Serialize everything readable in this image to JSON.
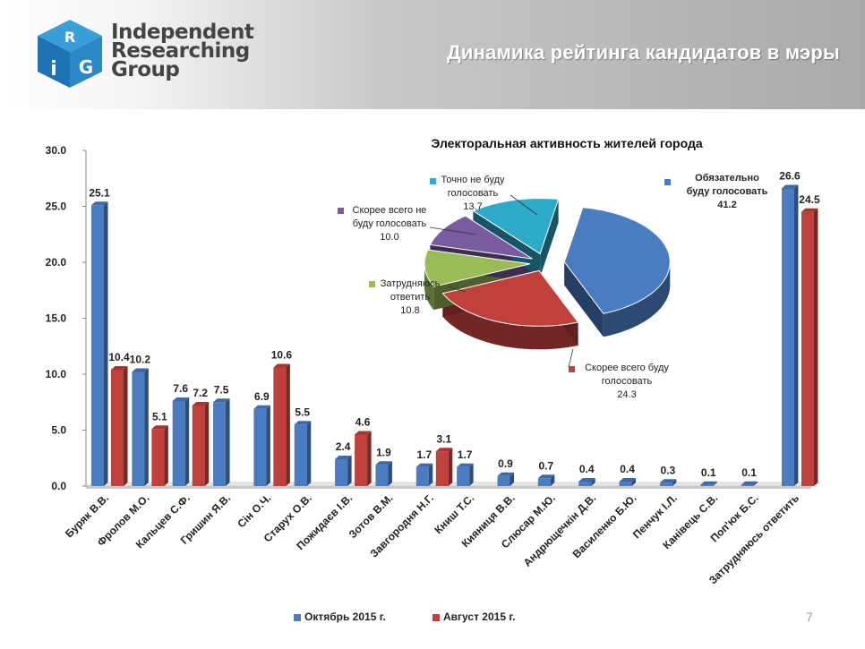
{
  "header": {
    "title": "Динамика рейтинга кандидатов в мэры",
    "logo_lines": [
      "Independent",
      "Researching",
      "Group"
    ],
    "logo_letters": [
      "R",
      "i",
      "G"
    ]
  },
  "page_number": "7",
  "colors": {
    "october": "#4a7cc2",
    "august": "#c0403c"
  },
  "chart_data": [
    {
      "type": "bar",
      "title": "",
      "xlabel": "",
      "ylabel": "",
      "ylim": [
        0,
        30
      ],
      "yticks": [
        "0.0",
        "5.0",
        "10.0",
        "15.0",
        "20.0",
        "25.0",
        "30.0"
      ],
      "categories": [
        "Буряк В.В.",
        "Фролов М.О.",
        "Кальцев С.Ф.",
        "Гришин Я.В.",
        "Сін О.Ч.",
        "Старух О.В.",
        "Пожидаєв І.В.",
        "Зотов В.М.",
        "Завгородня Н.Г.",
        "Книш Т.С.",
        "Кияниця В.В.",
        "Слюсар М.Ю.",
        "Андрющечкін Д.В.",
        "Василенко Б.Ю.",
        "Пенчук І.Л.",
        "Канівець С.В.",
        "Поп'юк Б.С.",
        "Затрудняюсь ответить"
      ],
      "series": [
        {
          "name": "Октябрь 2015 г.",
          "values": [
            25.1,
            10.2,
            7.6,
            7.5,
            6.9,
            5.5,
            2.4,
            1.9,
            1.7,
            1.7,
            0.9,
            0.7,
            0.4,
            0.4,
            0.3,
            0.1,
            0.1,
            26.6
          ],
          "labels": [
            "25.1",
            "10.2",
            "7.6",
            "7.5",
            "6.9",
            "5.5",
            "2.4",
            "1.9",
            "1.7",
            "1.7",
            "0.9",
            "0.7",
            "0.4",
            "0.4",
            "0.3",
            "0.1",
            "0.1",
            "26.6"
          ]
        },
        {
          "name": "Август 2015 г.",
          "values": [
            10.4,
            5.1,
            7.2,
            null,
            10.6,
            null,
            4.6,
            null,
            3.1,
            null,
            null,
            null,
            null,
            null,
            null,
            null,
            null,
            24.5
          ],
          "labels": [
            "10.4",
            "5.1",
            "7.2",
            "",
            "10.6",
            "",
            "4.6",
            "",
            "3.1",
            "",
            "",
            "",
            "",
            "",
            "",
            "",
            "",
            "24.5"
          ]
        }
      ],
      "legend": "bottom"
    },
    {
      "type": "pie",
      "title": "Электоральная активность жителей города",
      "slices": [
        {
          "name": "Обязательно буду голосовать",
          "label_lines": [
            "Обязательно",
            "буду голосовать"
          ],
          "value": 41.2,
          "value_label": "41.2",
          "color": "#4a7cc2"
        },
        {
          "name": "Скорее всего буду голосовать",
          "label_lines": [
            "Скорее всего буду",
            "голосовать"
          ],
          "value": 24.3,
          "value_label": "24.3",
          "color": "#c0403c"
        },
        {
          "name": "Затрудняюсь ответить",
          "label_lines": [
            "Затрудняюсь",
            "ответить"
          ],
          "value": 10.8,
          "value_label": "10.8",
          "color": "#9bbb59"
        },
        {
          "name": "Скорее всего не буду голосовать",
          "label_lines": [
            "Скорее всего не",
            "буду голосовать"
          ],
          "value": 10.0,
          "value_label": "10.0",
          "color": "#7a5aa0"
        },
        {
          "name": "Точно не буду голосовать",
          "label_lines": [
            "Точно не буду",
            "голосовать"
          ],
          "value": 13.7,
          "value_label": "13.7",
          "color": "#2eaacb"
        }
      ]
    }
  ]
}
